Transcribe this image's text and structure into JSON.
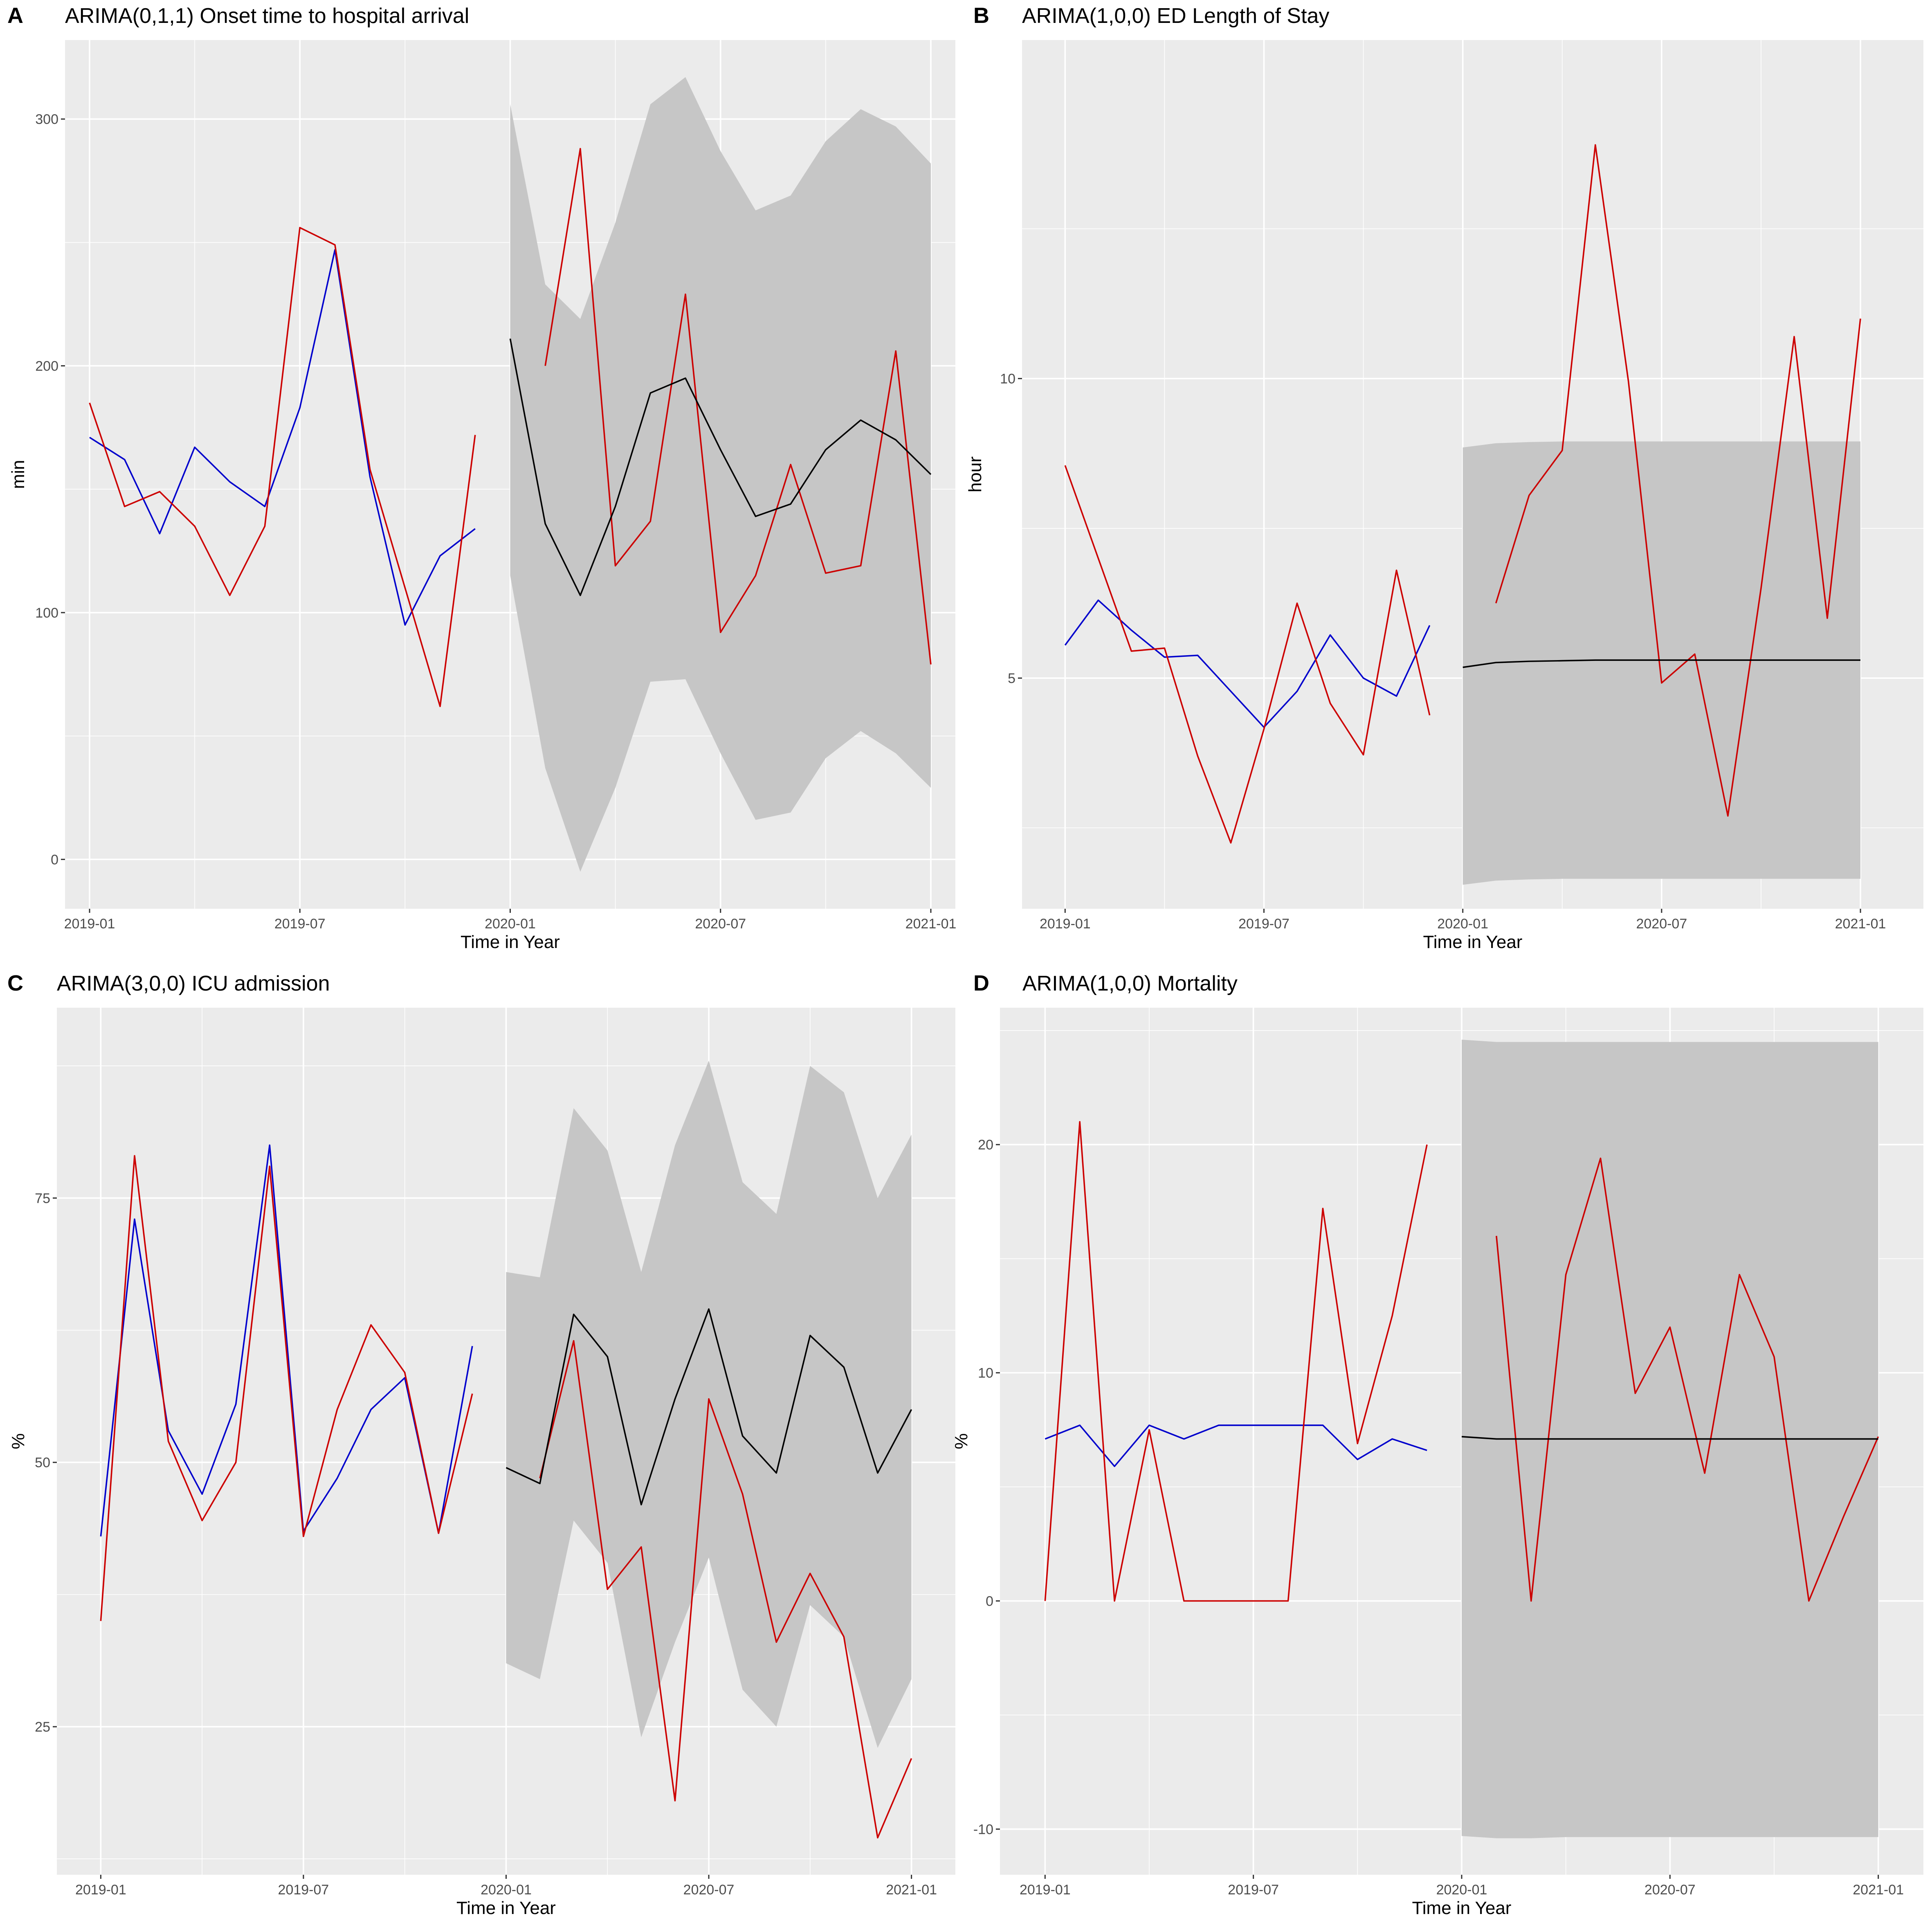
{
  "chart_data": [
    {
      "panel": "A",
      "type": "line",
      "title": "ARIMA(0,1,1) Onset time to hospital arrival",
      "xlabel": "Time in Year",
      "ylabel": "min",
      "xticks": [
        "2019-01",
        "2019-07",
        "2020-01",
        "2020-07",
        "2021-01"
      ],
      "yticks": [
        "0",
        "100",
        "200",
        "300"
      ],
      "xlim": [
        -0.7,
        24.7
      ],
      "ylim": [
        -20,
        332
      ],
      "grid": true,
      "legend": "none",
      "series": [
        {
          "color": "#0000cc",
          "x": [
            0,
            1,
            2,
            3,
            4,
            5,
            6,
            7,
            8,
            9,
            10,
            11
          ],
          "values": [
            171,
            162,
            132,
            167,
            153,
            143,
            183,
            247,
            155,
            95,
            123,
            134
          ]
        },
        {
          "color": "#cc0000",
          "x": [
            0,
            1,
            2,
            3,
            4,
            5,
            6,
            7,
            8,
            9,
            10,
            11
          ],
          "values": [
            185,
            143,
            149,
            135,
            107,
            135,
            256,
            249,
            158,
            110,
            62,
            172
          ]
        },
        {
          "color": "#cc0000",
          "x": [
            13,
            14,
            15,
            16,
            17,
            18,
            19,
            20,
            21,
            22,
            23,
            24
          ],
          "values": [
            200,
            288,
            119,
            137,
            229,
            92,
            115,
            160,
            116,
            119,
            206,
            79
          ]
        },
        {
          "color": "#000000",
          "x": [
            12,
            13,
            14,
            15,
            16,
            17,
            18,
            19,
            20,
            21,
            22,
            23,
            24
          ],
          "values": [
            211,
            136,
            107,
            143,
            189,
            195,
            166,
            139,
            144,
            166,
            178,
            170,
            156
          ]
        }
      ],
      "band": {
        "color": "#c6c6c6",
        "x": [
          12,
          13,
          14,
          15,
          16,
          17,
          18,
          19,
          20,
          21,
          22,
          23,
          24
        ],
        "upper": [
          306,
          233,
          219,
          258,
          306,
          317,
          287,
          263,
          269,
          291,
          304,
          297,
          282
        ],
        "lower": [
          115,
          37,
          -5,
          29,
          72,
          73,
          43,
          16,
          19,
          41,
          52,
          43,
          29
        ]
      }
    },
    {
      "panel": "B",
      "type": "line",
      "title": "ARIMA(1,0,0) ED Length of Stay",
      "xlabel": "Time in Year",
      "ylabel": "hour",
      "xticks": [
        "2019-01",
        "2019-07",
        "2020-01",
        "2020-07",
        "2021-01"
      ],
      "yticks": [
        "5",
        "10"
      ],
      "xlim": [
        -1.3,
        25.9
      ],
      "ylim": [
        1.15,
        15.65
      ],
      "grid": true,
      "legend": "none",
      "series": [
        {
          "color": "#0000cc",
          "x": [
            0,
            1,
            2,
            3,
            4,
            5,
            6,
            7,
            8,
            9,
            10,
            11
          ],
          "values": [
            5.55,
            6.3,
            5.8,
            5.35,
            5.38,
            4.78,
            4.18,
            4.78,
            5.72,
            5.0,
            4.7,
            5.88
          ]
        },
        {
          "color": "#cc0000",
          "x": [
            0,
            1,
            2,
            3,
            4,
            5,
            6,
            7,
            8,
            9,
            10,
            11
          ],
          "values": [
            8.55,
            7.0,
            5.45,
            5.5,
            3.7,
            2.25,
            4.15,
            6.25,
            4.58,
            3.72,
            6.8,
            4.38
          ]
        },
        {
          "color": "#cc0000",
          "x": [
            13,
            14,
            15,
            16,
            17,
            18,
            19,
            20,
            21,
            22,
            23,
            24
          ],
          "values": [
            6.25,
            8.05,
            8.8,
            13.9,
            9.95,
            4.92,
            5.4,
            2.7,
            6.5,
            10.7,
            6.0,
            11.0
          ]
        },
        {
          "color": "#000000",
          "x": [
            12,
            13,
            14,
            15,
            16,
            17,
            18,
            19,
            20,
            21,
            22,
            23,
            24
          ],
          "values": [
            5.18,
            5.26,
            5.28,
            5.29,
            5.3,
            5.3,
            5.3,
            5.3,
            5.3,
            5.3,
            5.3,
            5.3,
            5.3
          ]
        }
      ],
      "band": {
        "color": "#c6c6c6",
        "x": [
          12,
          13,
          14,
          15,
          16,
          17,
          18,
          19,
          20,
          21,
          22,
          23,
          24
        ],
        "upper": [
          8.85,
          8.92,
          8.94,
          8.95,
          8.95,
          8.95,
          8.95,
          8.95,
          8.95,
          8.95,
          8.95,
          8.95,
          8.95
        ],
        "lower": [
          1.55,
          1.62,
          1.64,
          1.65,
          1.65,
          1.65,
          1.65,
          1.65,
          1.65,
          1.65,
          1.65,
          1.65,
          1.65
        ]
      }
    },
    {
      "panel": "C",
      "type": "line",
      "title": "ARIMA(3,0,0) ICU admission",
      "xlabel": "Time in Year",
      "ylabel": "%",
      "xticks": [
        "2019-01",
        "2019-07",
        "2020-01",
        "2020-07",
        "2021-01"
      ],
      "yticks": [
        "25",
        "50",
        "75"
      ],
      "xlim": [
        -1.3,
        25.3
      ],
      "ylim": [
        11,
        93
      ],
      "grid": true,
      "legend": "none",
      "series": [
        {
          "color": "#0000cc",
          "x": [
            0,
            1,
            2,
            3,
            4,
            5,
            6,
            7,
            8,
            9,
            10,
            11
          ],
          "values": [
            43,
            73,
            53,
            47,
            55.5,
            80,
            43.5,
            48.5,
            55,
            58,
            43.3,
            61
          ]
        },
        {
          "color": "#cc0000",
          "x": [
            0,
            1,
            2,
            3,
            4,
            5,
            6,
            7,
            8,
            9,
            10,
            11
          ],
          "values": [
            35,
            79,
            52,
            44.5,
            50,
            78,
            43,
            55,
            63,
            58.5,
            43.3,
            56.5
          ]
        },
        {
          "color": "#cc0000",
          "x": [
            13,
            14,
            15,
            16,
            17,
            18,
            19,
            20,
            21,
            22,
            23,
            24
          ],
          "values": [
            48.5,
            61.5,
            38,
            42,
            18,
            56,
            47,
            33,
            39.5,
            33.5,
            14.5,
            22
          ]
        },
        {
          "color": "#000000",
          "x": [
            12,
            13,
            14,
            15,
            16,
            17,
            18,
            19,
            20,
            21,
            22,
            23,
            24
          ],
          "values": [
            49.5,
            48,
            64,
            60,
            46,
            56,
            64.5,
            52.5,
            49,
            62,
            59,
            49,
            55
          ]
        }
      ],
      "band": {
        "color": "#c6c6c6",
        "x": [
          12,
          13,
          14,
          15,
          16,
          17,
          18,
          19,
          20,
          21,
          22,
          23,
          24
        ],
        "upper": [
          68,
          67.5,
          83.5,
          79.5,
          68,
          80,
          88,
          76.5,
          73.5,
          87.5,
          85,
          75,
          81
        ],
        "lower": [
          31,
          29.5,
          44.5,
          40.5,
          24,
          33,
          41,
          28.5,
          25,
          36.5,
          33.5,
          23,
          29.5
        ]
      }
    },
    {
      "panel": "D",
      "type": "line",
      "title": "ARIMA(1,0,0) Mortality",
      "xlabel": "Time in Year",
      "ylabel": "%",
      "xticks": [
        "2019-01",
        "2019-07",
        "2020-01",
        "2020-07",
        "2021-01"
      ],
      "yticks": [
        "-10",
        "0",
        "10",
        "20"
      ],
      "xlim": [
        -1.3,
        25.3
      ],
      "ylim": [
        -12,
        26
      ],
      "grid": true,
      "legend": "none",
      "series": [
        {
          "color": "#0000cc",
          "x": [
            0,
            1,
            2,
            3,
            4,
            5,
            6,
            7,
            8,
            9,
            10,
            11
          ],
          "values": [
            7.1,
            7.7,
            5.9,
            7.7,
            7.1,
            7.7,
            7.7,
            7.7,
            7.7,
            6.2,
            7.1,
            6.6
          ]
        },
        {
          "color": "#cc0000",
          "x": [
            0,
            1,
            2,
            3,
            4,
            5,
            6,
            7,
            8,
            9,
            10,
            11
          ],
          "values": [
            0,
            21,
            0,
            7.5,
            0,
            0,
            0,
            0,
            17.2,
            6.9,
            12.5,
            20
          ]
        },
        {
          "color": "#cc0000",
          "x": [
            13,
            14,
            15,
            16,
            17,
            18,
            19,
            20,
            21,
            22,
            23,
            24
          ],
          "values": [
            16,
            0,
            14.3,
            19.4,
            9.1,
            12,
            5.6,
            14.3,
            10.7,
            0,
            3.7,
            7.2
          ]
        },
        {
          "color": "#000000",
          "x": [
            12,
            13,
            14,
            15,
            16,
            17,
            18,
            19,
            20,
            21,
            22,
            23,
            24
          ],
          "values": [
            7.2,
            7.1,
            7.1,
            7.1,
            7.1,
            7.1,
            7.1,
            7.1,
            7.1,
            7.1,
            7.1,
            7.1,
            7.1
          ]
        }
      ],
      "band": {
        "color": "#c6c6c6",
        "x": [
          12,
          13,
          14,
          15,
          16,
          17,
          18,
          19,
          20,
          21,
          22,
          23,
          24
        ],
        "upper": [
          24.6,
          24.5,
          24.5,
          24.5,
          24.5,
          24.5,
          24.5,
          24.5,
          24.5,
          24.5,
          24.5,
          24.5,
          24.5
        ],
        "lower": [
          -10.3,
          -10.4,
          -10.4,
          -10.35,
          -10.35,
          -10.35,
          -10.35,
          -10.35,
          -10.35,
          -10.35,
          -10.35,
          -10.35,
          -10.35
        ]
      }
    }
  ]
}
